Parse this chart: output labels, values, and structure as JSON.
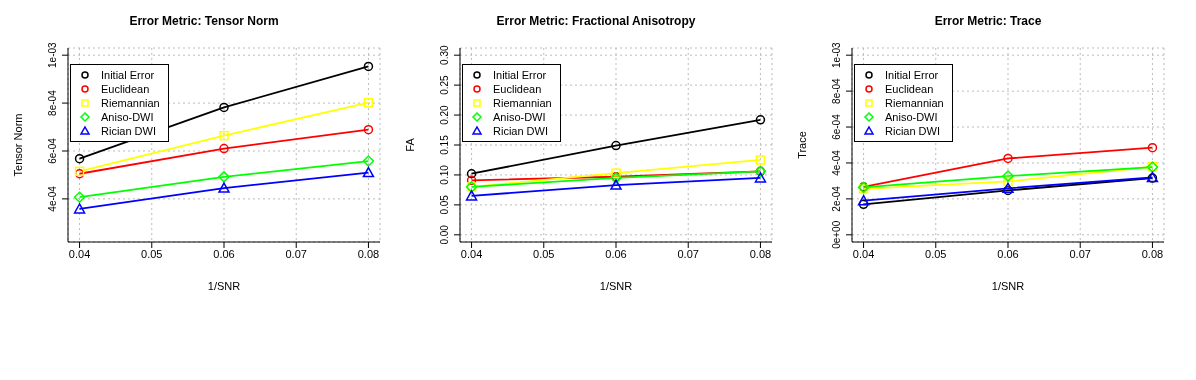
{
  "chart_data": [
    {
      "type": "line",
      "title": "Error Metric: Tensor Norm",
      "xlabel": "1/SNR",
      "ylabel": "Tensor Norm",
      "x": [
        0.04,
        0.06,
        0.08
      ],
      "xlim": [
        0.0384,
        0.0816
      ],
      "xticks": [
        0.04,
        0.05,
        0.06,
        0.07,
        0.08
      ],
      "ylim": [
        0.00022,
        0.00103
      ],
      "yticks": [
        {
          "value": 0.0004,
          "label": "4e-04"
        },
        {
          "value": 0.0006,
          "label": "6e-04"
        },
        {
          "value": 0.0008,
          "label": "8e-04"
        },
        {
          "value": 0.001,
          "label": "1e-03"
        }
      ],
      "grid": true,
      "legend": "top left",
      "series": [
        {
          "name": "Initial Error",
          "color": "#000000",
          "marker": "circle",
          "values": [
            0.000568,
            0.000782,
            0.000953
          ]
        },
        {
          "name": "Euclidean",
          "color": "#ff0000",
          "marker": "circle",
          "values": [
            0.000505,
            0.00061,
            0.000689
          ]
        },
        {
          "name": "Riemannian",
          "color": "#ffff00",
          "marker": "square",
          "values": [
            0.000515,
            0.000664,
            0.000802
          ]
        },
        {
          "name": "Aniso-DWI",
          "color": "#00ff00",
          "marker": "diamond",
          "values": [
            0.000407,
            0.000492,
            0.000558
          ]
        },
        {
          "name": "Rician DWI",
          "color": "#0000ff",
          "marker": "triangle",
          "values": [
            0.000358,
            0.000445,
            0.00051
          ]
        }
      ]
    },
    {
      "type": "line",
      "title": "Error Metric: Fractional Anisotropy",
      "xlabel": "1/SNR",
      "ylabel": "FA",
      "x": [
        0.04,
        0.06,
        0.08
      ],
      "xlim": [
        0.0384,
        0.0816
      ],
      "xticks": [
        0.04,
        0.05,
        0.06,
        0.07,
        0.08
      ],
      "ylim": [
        -0.012,
        0.312
      ],
      "yticks": [
        {
          "value": 0,
          "label": "0.00"
        },
        0.05,
        {
          "value": 0.1,
          "label": "0.10"
        },
        0.15,
        {
          "value": 0.2,
          "label": "0.20"
        },
        0.25,
        {
          "value": 0.3,
          "label": "0.30"
        }
      ],
      "grid": true,
      "legend": "top left",
      "series": [
        {
          "name": "Initial Error",
          "color": "#000000",
          "marker": "circle",
          "values": [
            0.102,
            0.149,
            0.192
          ]
        },
        {
          "name": "Euclidean",
          "color": "#ff0000",
          "marker": "circle",
          "values": [
            0.091,
            0.097,
            0.106
          ]
        },
        {
          "name": "Riemannian",
          "color": "#ffff00",
          "marker": "square",
          "values": [
            0.08,
            0.103,
            0.125
          ]
        },
        {
          "name": "Aniso-DWI",
          "color": "#00ff00",
          "marker": "diamond",
          "values": [
            0.08,
            0.095,
            0.106
          ]
        },
        {
          "name": "Rician DWI",
          "color": "#0000ff",
          "marker": "triangle",
          "values": [
            0.065,
            0.083,
            0.095
          ]
        }
      ]
    },
    {
      "type": "line",
      "title": "Error Metric: Trace",
      "xlabel": "1/SNR",
      "ylabel": "Trace",
      "x": [
        0.04,
        0.06,
        0.08
      ],
      "xlim": [
        0.0384,
        0.0816
      ],
      "xticks": [
        0.04,
        0.05,
        0.06,
        0.07,
        0.08
      ],
      "ylim": [
        -4e-05,
        0.00104
      ],
      "yticks": [
        {
          "value": 0,
          "label": "0e+00"
        },
        {
          "value": 0.0002,
          "label": "2e-04"
        },
        {
          "value": 0.0004,
          "label": "4e-04"
        },
        {
          "value": 0.0006,
          "label": "6e-04"
        },
        {
          "value": 0.0008,
          "label": "8e-04"
        },
        {
          "value": 0.001,
          "label": "1e-03"
        }
      ],
      "grid": true,
      "legend": "top left",
      "series": [
        {
          "name": "Initial Error",
          "color": "#000000",
          "marker": "circle",
          "values": [
            0.00017,
            0.000247,
            0.000316
          ]
        },
        {
          "name": "Euclidean",
          "color": "#ff0000",
          "marker": "circle",
          "values": [
            0.000267,
            0.000425,
            0.000485
          ]
        },
        {
          "name": "Riemannian",
          "color": "#ffff00",
          "marker": "square",
          "values": [
            0.000256,
            0.000297,
            0.000379
          ]
        },
        {
          "name": "Aniso-DWI",
          "color": "#00ff00",
          "marker": "diamond",
          "values": [
            0.000264,
            0.000327,
            0.000377
          ]
        },
        {
          "name": "Rician DWI",
          "color": "#0000ff",
          "marker": "triangle",
          "values": [
            0.00019,
            0.000259,
            0.000319
          ]
        }
      ]
    }
  ]
}
